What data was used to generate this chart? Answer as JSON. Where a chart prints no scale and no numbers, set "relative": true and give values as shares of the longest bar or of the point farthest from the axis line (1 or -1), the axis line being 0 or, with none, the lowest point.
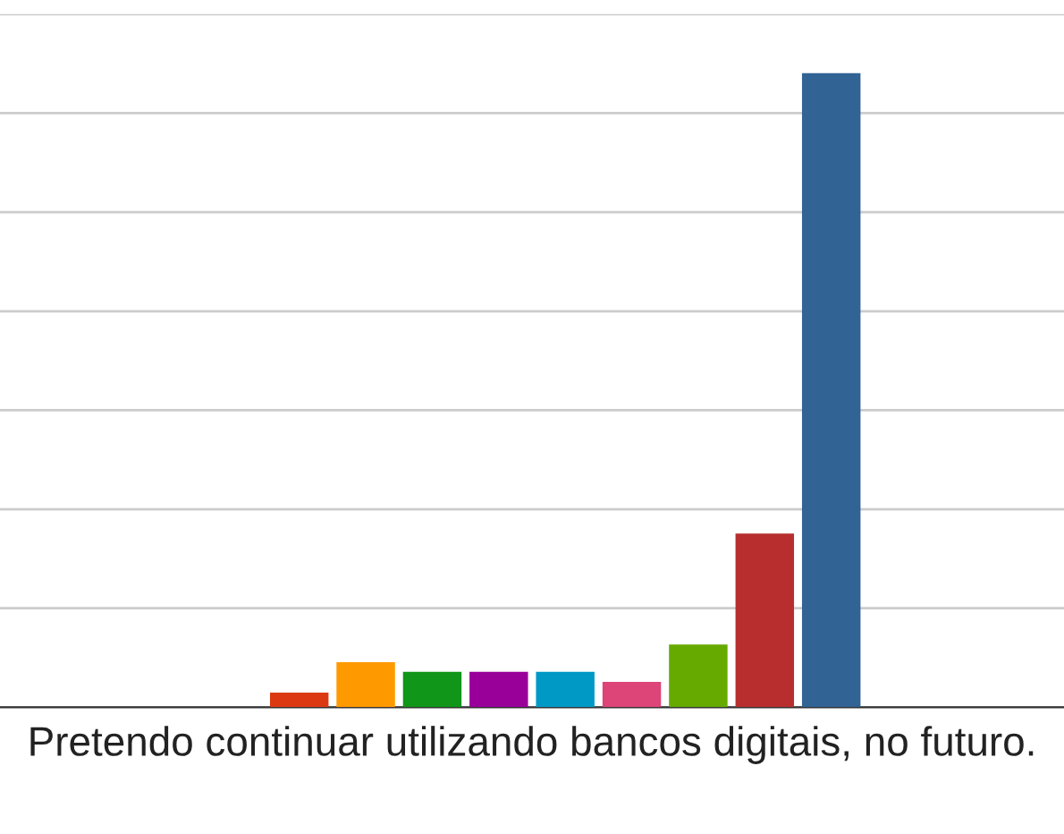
{
  "chart_data": {
    "type": "bar",
    "relative": true,
    "xlabel": "Pretendo continuar utilizando bancos digitais, no futuro.",
    "categories": [
      null,
      null,
      null,
      null,
      null,
      null,
      null,
      null,
      null
    ],
    "values": [
      0.023,
      0.071,
      0.056,
      0.056,
      0.056,
      0.04,
      0.099,
      0.274,
      1
    ],
    "colors": [
      "#dc3912",
      "#ff9900",
      "#109618",
      "#990099",
      "#0099c6",
      "#dd4477",
      "#66aa00",
      "#b82e2e",
      "#316395"
    ],
    "grid": "y"
  }
}
